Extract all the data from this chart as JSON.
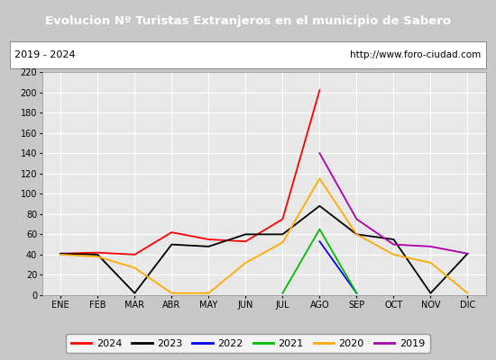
{
  "title": "Evolucion Nº Turistas Extranjeros en el municipio de Sabero",
  "subtitle_left": "2019 - 2024",
  "subtitle_right": "http://www.foro-ciudad.com",
  "months": [
    "ENE",
    "FEB",
    "MAR",
    "ABR",
    "MAY",
    "JUN",
    "JUL",
    "AGO",
    "SEP",
    "OCT",
    "NOV",
    "DIC"
  ],
  "ylim": [
    0,
    220
  ],
  "yticks": [
    0,
    20,
    40,
    60,
    80,
    100,
    120,
    140,
    160,
    180,
    200,
    220
  ],
  "series": {
    "2024": {
      "color": "#ff0000",
      "data": [
        41,
        42,
        40,
        62,
        55,
        53,
        75,
        202,
        null,
        null,
        null,
        null
      ]
    },
    "2023": {
      "color": "#000000",
      "data": [
        41,
        40,
        2,
        50,
        48,
        60,
        60,
        88,
        60,
        55,
        2,
        41
      ]
    },
    "2022": {
      "color": "#0000ff",
      "data": [
        null,
        null,
        null,
        null,
        null,
        null,
        null,
        53,
        2,
        null,
        null,
        null
      ]
    },
    "2021": {
      "color": "#00bb00",
      "data": [
        null,
        null,
        null,
        null,
        null,
        null,
        2,
        65,
        2,
        null,
        null,
        null
      ]
    },
    "2020": {
      "color": "#ffaa00",
      "data": [
        40,
        38,
        27,
        2,
        2,
        32,
        52,
        115,
        60,
        40,
        32,
        2
      ]
    },
    "2019": {
      "color": "#aa00aa",
      "data": [
        null,
        null,
        null,
        null,
        null,
        null,
        null,
        140,
        75,
        50,
        48,
        41
      ]
    }
  },
  "legend_order": [
    "2024",
    "2023",
    "2022",
    "2021",
    "2020",
    "2019"
  ],
  "title_bg_color": "#4499cc",
  "title_text_color": "#ffffff",
  "subtitle_bg_color": "#ffffff",
  "subtitle_text_color": "#000000",
  "plot_bg_color": "#e8e8e8",
  "grid_color": "#ffffff",
  "outer_bg_color": "#c8c8c8"
}
